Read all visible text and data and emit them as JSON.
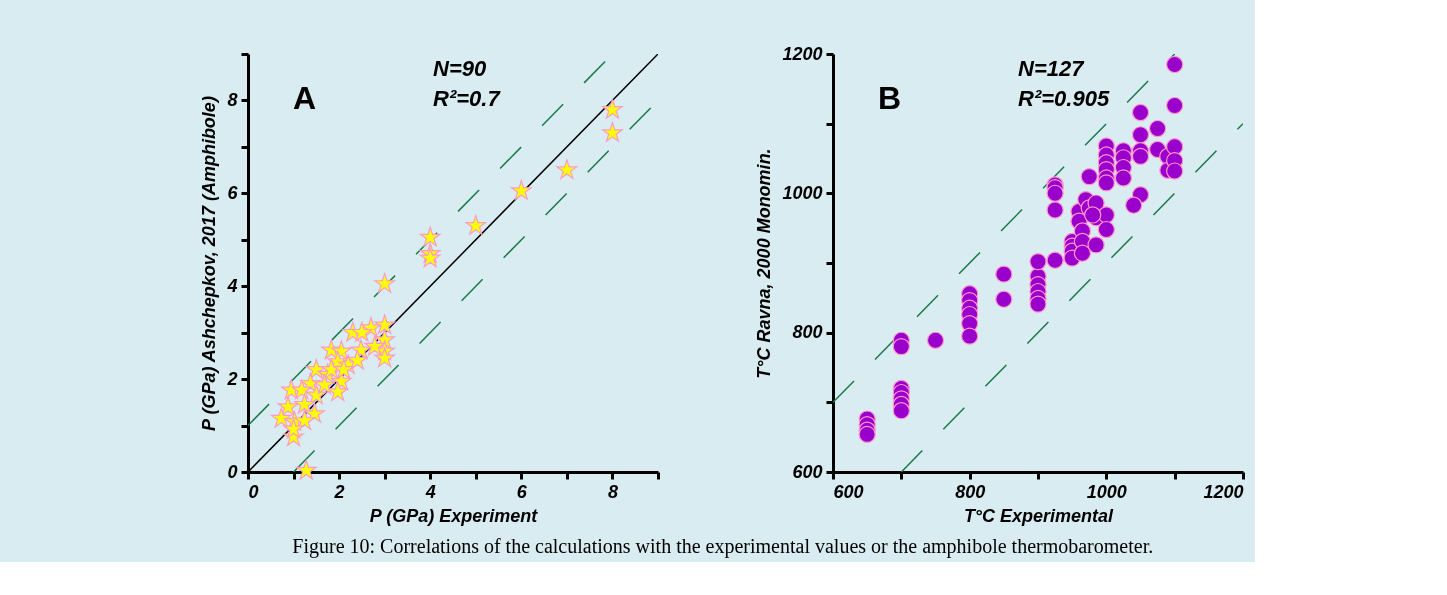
{
  "chart_data": [
    {
      "type": "scatter",
      "xlabel": "P (GPa) Experiment",
      "ylabel": "P (GPa) Ashchepkov, 2017 (Amphibole)",
      "annotations": [
        "A",
        "N=90",
        "R²=0.7",
        "Figure 10: Correlations of the calculations with the experimental values or the amphibole thermobarometer."
      ],
      "xlim": [
        0,
        9
      ],
      "ylim": [
        0,
        9
      ],
      "xticks": [
        0,
        {
          "value": 1,
          "label": null
        },
        2,
        {
          "value": 3,
          "label": null
        },
        4,
        {
          "value": 5,
          "label": null
        },
        6,
        {
          "value": 7,
          "label": null
        },
        8,
        {
          "value": 9,
          "label": null
        }
      ],
      "yticks": [
        0,
        {
          "value": 1,
          "label": null
        },
        2,
        {
          "value": 3,
          "label": null
        },
        4,
        {
          "value": 5,
          "label": null
        },
        6,
        {
          "value": 7,
          "label": null
        },
        8,
        {
          "value": 9,
          "label": null
        }
      ],
      "grid": false,
      "series": [
        {
          "type": "line",
          "color": "#000000",
          "line_style": "solid",
          "x": [
            0,
            9
          ],
          "values": [
            0,
            9
          ]
        },
        {
          "type": "line",
          "color": "#1a7a4a",
          "line_style": "dashed",
          "x": [
            0,
            8
          ],
          "values": [
            1,
            9
          ]
        },
        {
          "type": "line",
          "color": "#1a7a4a",
          "line_style": "dashed",
          "x": [
            1,
            9
          ],
          "values": [
            0,
            8
          ]
        },
        {
          "color": "#ffff00",
          "marker": "star",
          "x": [
            3.0,
            2.7,
            2.3,
            2.5,
            3.0,
            3.0,
            3.0,
            2.78,
            2.48,
            1.83,
            2.05,
            1.97,
            2.2,
            2.4,
            1.5,
            1.75,
            2.05,
            1.97,
            1.37,
            0.95,
            1.18,
            1.5,
            0.88,
            1.24,
            1.46,
            0.73,
            1.02,
            1.24,
            1.0,
            1.0,
            1.28,
            1.68,
            1.83,
            2.1,
            3.0,
            4.0,
            4.0,
            4.0,
            5.0,
            6.0,
            7.0,
            8.0,
            8.0
          ],
          "values": [
            3.16,
            3.1,
            3.0,
            3.0,
            2.84,
            2.6,
            2.45,
            2.7,
            2.62,
            2.62,
            2.6,
            2.37,
            2.3,
            2.4,
            2.2,
            2.1,
            1.95,
            1.72,
            1.9,
            1.76,
            1.76,
            1.65,
            1.4,
            1.45,
            1.25,
            1.15,
            1.08,
            1.1,
            0.75,
            0.92,
            0.03,
            1.87,
            2.2,
            2.2,
            4.05,
            5.05,
            4.7,
            4.6,
            5.3,
            6.05,
            6.5,
            7.8,
            7.3
          ]
        }
      ]
    },
    {
      "type": "scatter",
      "xlabel": "T°C Experimental",
      "ylabel": "T°C Ravna, 2000 Monomin.",
      "annotations": [
        "B",
        "N=127",
        "R²=0.905"
      ],
      "xlim": [
        600,
        1200
      ],
      "ylim": [
        600,
        1200
      ],
      "xticks": [
        600,
        {
          "value": 700,
          "label": null
        },
        800,
        {
          "value": 900,
          "label": null
        },
        1000,
        {
          "value": 1100,
          "label": null
        },
        1200
      ],
      "yticks": [
        600,
        {
          "value": 700,
          "label": null
        },
        800,
        {
          "value": 900,
          "label": null
        },
        1000,
        {
          "value": 1100,
          "label": null
        },
        1200
      ],
      "grid": false,
      "series": [
        {
          "type": "line",
          "color": "#1a7a4a",
          "line_style": "dashed",
          "x": [
            600,
            1100
          ],
          "values": [
            700,
            1200
          ]
        },
        {
          "type": "line",
          "color": "#1a7a4a",
          "line_style": "dashed",
          "x": [
            700,
            1200
          ],
          "values": [
            600,
            1100
          ]
        },
        {
          "color": "#9900cc",
          "marker": "circle",
          "x": [
            650,
            650,
            650,
            650,
            700,
            700,
            700,
            700,
            700,
            700,
            700,
            750,
            800,
            800,
            800,
            800,
            800,
            800,
            850,
            850,
            900,
            900,
            900,
            900,
            900,
            900,
            925,
            925,
            925,
            925,
            925,
            950,
            950,
            950,
            950,
            960,
            960,
            965,
            965,
            965,
            970,
            975,
            985,
            985,
            1000,
            1000,
            985,
            980,
            975,
            1000,
            1000,
            1000,
            1000,
            1000,
            1000,
            1025,
            1025,
            1025,
            1025,
            1050,
            1050,
            1050,
            1050,
            1050,
            1040,
            1075,
            1075,
            1090,
            1090,
            1100,
            1100,
            1100,
            1100,
            1100
          ],
          "values": [
            676,
            668,
            660,
            654,
            789,
            780,
            720,
            714,
            705,
            697,
            688,
            789,
            856,
            846,
            835,
            826,
            813,
            795,
            884,
            848,
            881,
            869,
            859,
            849,
            841,
            902,
            1012,
            1008,
            1000,
            976,
            904,
            931,
            924,
            917,
            907,
            974,
            960,
            946,
            931,
            914,
            991,
            979,
            986,
            965,
            969,
            948,
            926,
            969,
            1024,
            1068,
            1055,
            1044,
            1034,
            1022,
            1015,
            1061,
            1051,
            1037,
            1022,
            1116,
            1084,
            1061,
            1053,
            998,
            983,
            1093,
            1063,
            1053,
            1033,
            1185,
            1126,
            1067,
            1047,
            1032
          ]
        }
      ]
    }
  ]
}
